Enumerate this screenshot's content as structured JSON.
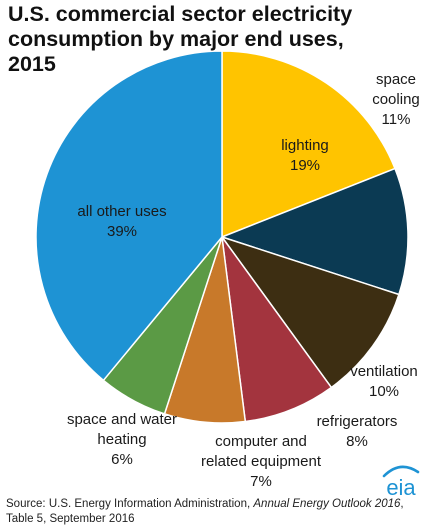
{
  "chart_data": {
    "type": "pie",
    "title_lines": [
      "U.S. commercial sector electricity",
      "consumption by major end uses,",
      "2015"
    ],
    "slices": [
      {
        "name_lines": [
          "lighting"
        ],
        "value": 19,
        "value_label": "19%",
        "color": "#FFC400"
      },
      {
        "name_lines": [
          "space",
          "cooling"
        ],
        "value": 11,
        "value_label": "11%",
        "color": "#0B3A53"
      },
      {
        "name_lines": [
          "ventilation"
        ],
        "value": 10,
        "value_label": "10%",
        "color": "#3D2E12"
      },
      {
        "name_lines": [
          "refrigerators"
        ],
        "value": 8,
        "value_label": "8%",
        "color": "#A3343E"
      },
      {
        "name_lines": [
          "computer and",
          "related equipment"
        ],
        "value": 7,
        "value_label": "7%",
        "color": "#C8792A"
      },
      {
        "name_lines": [
          "space and water",
          "heating"
        ],
        "value": 6,
        "value_label": "6%",
        "color": "#5B9A45"
      },
      {
        "name_lines": [
          "all other uses"
        ],
        "value": 39,
        "value_label": "39%",
        "color": "#1E93D4"
      }
    ]
  },
  "source": {
    "prefix": "Source: U.S. Energy Information Administration, ",
    "publication": "Annual Energy Outlook 2016",
    "suffix": ",",
    "line2": "Table 5, September 2016"
  },
  "logo": {
    "text": "eia",
    "icon": "eia-logo",
    "color": "#1E93D4"
  }
}
